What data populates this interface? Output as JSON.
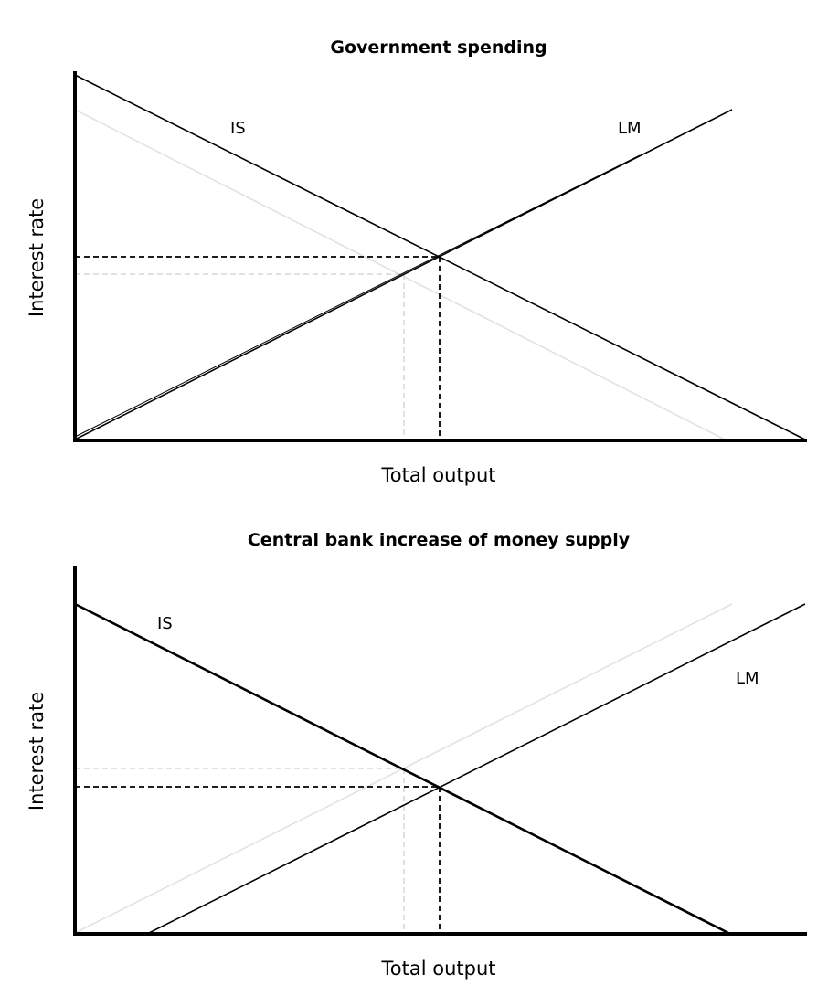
{
  "panels": [
    {
      "title": "Government spending",
      "x_axis_label": "Total output",
      "y_axis_label": "Interest rate",
      "curves": {
        "is_label": "IS",
        "lm_label": "LM"
      },
      "shifted_curve": "IS",
      "shift_direction": "right"
    },
    {
      "title": "Central bank increase of money supply",
      "x_axis_label": "Total output",
      "y_axis_label": "Interest rate",
      "curves": {
        "is_label": "IS",
        "lm_label": "LM"
      },
      "shifted_curve": "LM",
      "shift_direction": "right"
    }
  ],
  "colors": {
    "current_curves": "#000000",
    "previous_curves": "#e2e2e2",
    "background": "#ffffff"
  }
}
